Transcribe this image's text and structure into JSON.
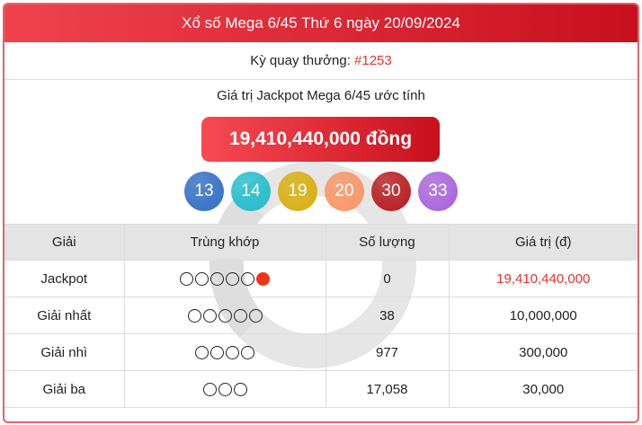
{
  "header": {
    "title": "Xổ số Mega 6/45 Thứ 6 ngày 20/09/2024"
  },
  "draw": {
    "label": "Kỳ quay thưởng: ",
    "number": "#1253"
  },
  "jackpot": {
    "label": "Giá trị Jackpot Mega 6/45 ước tính",
    "value": "19,410,440,000 đồng"
  },
  "balls": [
    {
      "n": "13",
      "color": "#2f6dc4"
    },
    {
      "n": "14",
      "color": "#22bccb"
    },
    {
      "n": "19",
      "color": "#d9ad0d"
    },
    {
      "n": "20",
      "color": "#f99565"
    },
    {
      "n": "30",
      "color": "#b7191c"
    },
    {
      "n": "33",
      "color": "#a661d9"
    }
  ],
  "table": {
    "headers": [
      "Giải",
      "Trùng khớp",
      "Số lượng",
      "Giá trị (đ)"
    ],
    "rows": [
      {
        "prize": "Jackpot",
        "matches": 5,
        "special": true,
        "count": "0",
        "value": "19,410,440,000"
      },
      {
        "prize": "Giải nhất",
        "matches": 5,
        "special": false,
        "count": "38",
        "value": "10,000,000"
      },
      {
        "prize": "Giải nhì",
        "matches": 4,
        "special": false,
        "count": "977",
        "value": "300,000"
      },
      {
        "prize": "Giải ba",
        "matches": 3,
        "special": false,
        "count": "17,058",
        "value": "30,000"
      }
    ]
  }
}
